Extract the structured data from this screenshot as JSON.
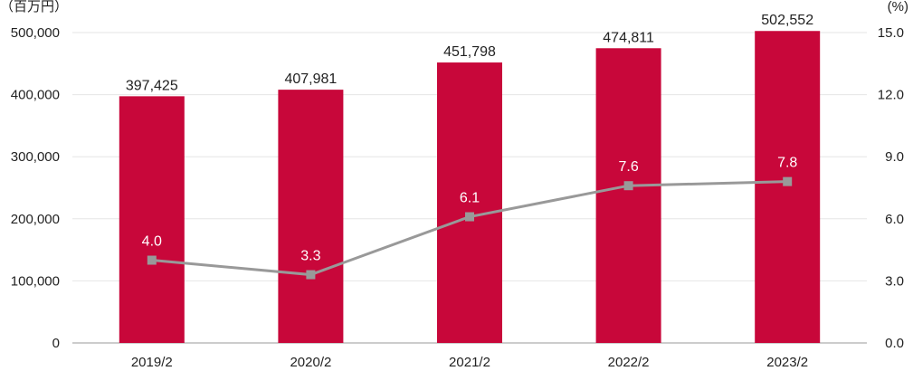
{
  "chart_data": {
    "type": "bar",
    "categories": [
      "2019/2",
      "2020/2",
      "2021/2",
      "2022/2",
      "2023/2"
    ],
    "series": [
      {
        "type": "bar",
        "axis": "left",
        "values": [
          397425,
          407981,
          451798,
          474811,
          502552
        ],
        "labels": [
          "397,425",
          "407,981",
          "451,798",
          "474,811",
          "502,552"
        ],
        "color": "#C8073A"
      },
      {
        "type": "line",
        "axis": "right",
        "values": [
          4.0,
          3.3,
          6.1,
          7.6,
          7.8
        ],
        "labels": [
          "4.0",
          "3.3",
          "6.1",
          "7.6",
          "7.8"
        ],
        "color": "#999999"
      }
    ],
    "y_left": {
      "unit_label": "（百万円）",
      "range": [
        0,
        500000
      ],
      "ticks": [
        0,
        100000,
        200000,
        300000,
        400000,
        500000
      ],
      "tick_labels": [
        "0",
        "100,000",
        "200,000",
        "300,000",
        "400,000",
        "500,000"
      ]
    },
    "y_right": {
      "unit_label": "(%)",
      "range": [
        0,
        15
      ],
      "ticks": [
        0,
        3,
        6,
        9,
        12,
        15
      ],
      "tick_labels": [
        "0.0",
        "3.0",
        "6.0",
        "9.0",
        "12.0",
        "15.0"
      ]
    },
    "grid": true,
    "legend": "none"
  }
}
